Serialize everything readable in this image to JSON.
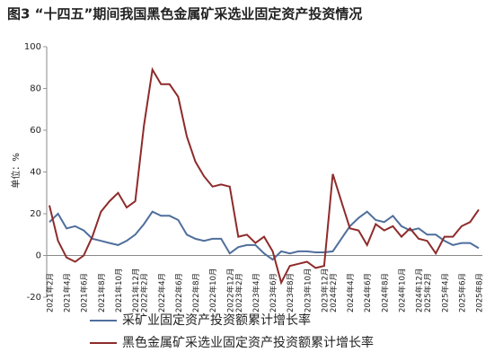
{
  "chart_data": {
    "type": "line",
    "title": "图3 “十四五”期间我国黑色金属矿采选业固定资产投资情况",
    "y_label": "单位：%",
    "categories": [
      "2021年2月",
      null,
      "2021年4月",
      null,
      "2021年6月",
      null,
      "2021年8月",
      null,
      "2021年10月",
      null,
      "2021年12月",
      "2022年2月",
      null,
      "2022年4月",
      null,
      "2022年6月",
      null,
      "2022年8月",
      null,
      "2022年10月",
      null,
      "2022年12月",
      "2023年2月",
      null,
      "2023年4月",
      null,
      "2023年6月",
      null,
      "2023年8月",
      null,
      "2023年10月",
      null,
      "2023年12月",
      "2024年2月",
      null,
      "2024年4月",
      null,
      "2024年6月",
      null,
      "2024年8月",
      null,
      "2024年10月",
      null,
      "2024年12月",
      "2025年2月",
      null,
      "2025年4月",
      null,
      "2025年6月",
      null,
      "2025年8月"
    ],
    "series": [
      {
        "name": "采矿业固定资产投资额累计增长率",
        "color": "#4f6f9c",
        "values": [
          16,
          20,
          13,
          14,
          12,
          8,
          7,
          6,
          5,
          7,
          10,
          15,
          21,
          19,
          19,
          17,
          10,
          8,
          7,
          8,
          8,
          1,
          4,
          5,
          5,
          1,
          -2,
          2,
          1,
          2,
          2,
          1.5,
          1.5,
          2,
          8,
          14,
          18,
          21,
          17,
          16,
          19,
          14,
          12,
          13,
          10,
          10,
          7,
          5,
          6,
          6,
          3.5
        ]
      },
      {
        "name": "黑色金属矿采选业固定资产投资额累计增长率",
        "color": "#8e2b2b",
        "values": [
          24,
          7,
          -1,
          -3,
          0,
          9,
          21,
          26,
          30,
          23,
          26,
          62,
          89,
          82,
          82,
          76,
          57,
          45,
          38,
          33,
          34,
          33,
          9,
          10,
          6,
          9,
          2,
          -13,
          -5,
          -4,
          -3,
          -6,
          -5,
          39,
          26,
          13,
          12,
          5,
          15,
          12,
          14,
          9,
          13,
          8,
          7,
          1,
          9,
          9,
          14,
          16,
          22
        ]
      }
    ],
    "ylim": [
      -20,
      100
    ],
    "yticks": [
      -20,
      0,
      20,
      40,
      60,
      80,
      100
    ],
    "grid": false
  }
}
